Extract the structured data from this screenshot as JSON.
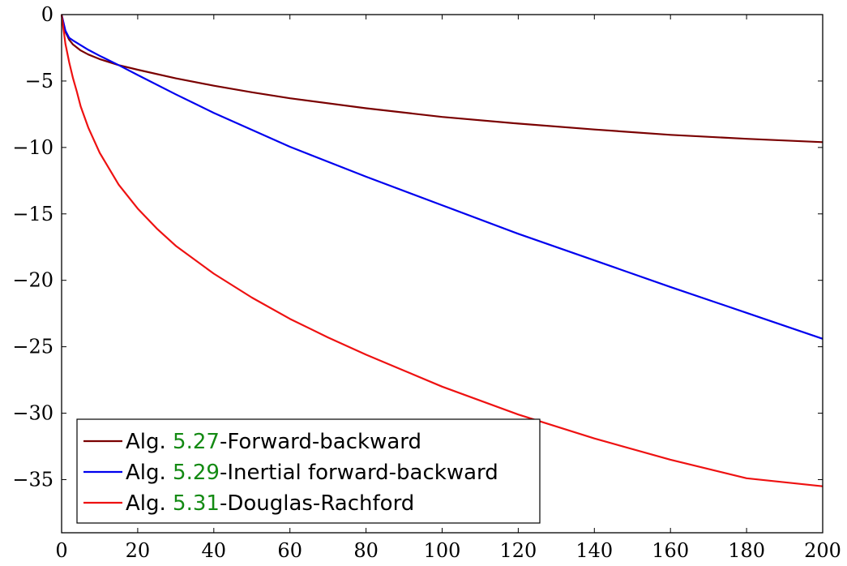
{
  "chart_data": {
    "type": "line",
    "title": "",
    "xlabel": "",
    "ylabel": "",
    "xlim": [
      0,
      200
    ],
    "ylim": [
      -39,
      0
    ],
    "x_ticks": [
      0,
      20,
      40,
      60,
      80,
      100,
      120,
      140,
      160,
      180,
      200
    ],
    "y_ticks": [
      0,
      -5,
      -10,
      -15,
      -20,
      -25,
      -30,
      -35
    ],
    "grid": false,
    "legend_position": "bottom-left",
    "series": [
      {
        "name": "Alg. 5.27-Forward-backward",
        "legend_prefix": "Alg. ",
        "legend_ref": "5.27",
        "legend_suffix": "-Forward-backward",
        "color": "#7a0000",
        "x": [
          0,
          1,
          2,
          3,
          5,
          7,
          10,
          15,
          20,
          30,
          40,
          50,
          60,
          80,
          100,
          120,
          140,
          160,
          180,
          200
        ],
        "y": [
          0,
          -1.3,
          -1.9,
          -2.25,
          -2.7,
          -3.0,
          -3.35,
          -3.8,
          -4.15,
          -4.8,
          -5.35,
          -5.85,
          -6.3,
          -7.05,
          -7.7,
          -8.2,
          -8.65,
          -9.05,
          -9.35,
          -9.6
        ]
      },
      {
        "name": "Alg. 5.29-Inertial forward-backward",
        "legend_prefix": "Alg. ",
        "legend_ref": "5.29",
        "legend_suffix": "-Inertial forward-backward",
        "color": "#0000ee",
        "x": [
          0,
          1,
          2,
          3,
          5,
          7,
          10,
          15,
          20,
          30,
          40,
          60,
          80,
          100,
          120,
          140,
          160,
          180,
          200
        ],
        "y": [
          0,
          -1.2,
          -1.75,
          -1.95,
          -2.3,
          -2.65,
          -3.1,
          -3.8,
          -4.55,
          -6.0,
          -7.4,
          -9.95,
          -12.2,
          -14.35,
          -16.5,
          -18.5,
          -20.5,
          -22.45,
          -24.4
        ]
      },
      {
        "name": "Alg. 5.31-Douglas-Rachford",
        "legend_prefix": "Alg. ",
        "legend_ref": "5.31",
        "legend_suffix": "-Douglas-Rachford",
        "color": "#ee1111",
        "x": [
          0,
          1,
          2,
          3,
          4,
          5,
          7,
          10,
          15,
          20,
          25,
          30,
          40,
          50,
          60,
          70,
          80,
          90,
          100,
          120,
          140,
          160,
          180,
          200
        ],
        "y": [
          0,
          -2.2,
          -3.6,
          -4.8,
          -5.8,
          -6.9,
          -8.5,
          -10.4,
          -12.8,
          -14.6,
          -16.1,
          -17.4,
          -19.5,
          -21.3,
          -22.9,
          -24.3,
          -25.6,
          -26.8,
          -28.0,
          -30.1,
          -31.9,
          -33.5,
          -34.9,
          -35.5
        ]
      }
    ]
  }
}
